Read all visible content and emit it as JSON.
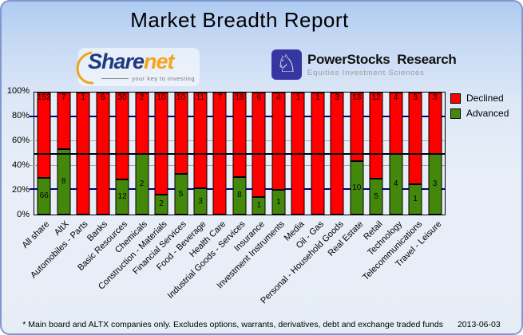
{
  "title": "Market Breadth Report",
  "logos": {
    "sharenet": {
      "part1": "Share",
      "part2": "net",
      "tagline": "your key to investing"
    },
    "powerstocks": {
      "name": "PowerStocks  Research",
      "tagline": "Equities Investment Sciences"
    }
  },
  "chart_data": {
    "type": "bar",
    "stacked": true,
    "normalized": "percent-stacked",
    "categories": [
      "All share",
      "AltX",
      "Automobiles - Parts",
      "Banks",
      "Basic Resources",
      "Chemicals",
      "Construction - Materials",
      "Financial Services",
      "Food - Beverage",
      "Health Care",
      "Industrial Goods - Services",
      "Insurance",
      "Investment Instruments",
      "Media",
      "Oil - Gas",
      "Personal - Household Goods",
      "Real Estate",
      "Retail",
      "Technology",
      "Telecommunications",
      "Travel - Leisure"
    ],
    "series": [
      {
        "name": "Declined",
        "color": "#ff0000",
        "values": [
          152,
          7,
          1,
          6,
          30,
          2,
          10,
          10,
          11,
          7,
          18,
          6,
          4,
          1,
          1,
          3,
          13,
          12,
          4,
          3,
          3
        ]
      },
      {
        "name": "Advanced",
        "color": "#44880b",
        "values": [
          66,
          8,
          0,
          0,
          12,
          2,
          2,
          5,
          3,
          0,
          8,
          1,
          1,
          0,
          0,
          0,
          10,
          5,
          4,
          1,
          3
        ]
      }
    ],
    "value_axis": {
      "min": 0,
      "max": 100,
      "unit": "%",
      "ticks": [
        "0%",
        "20%",
        "40%",
        "60%",
        "80%",
        "100%"
      ]
    },
    "gridlines": [
      {
        "at": 20,
        "color": "#00008b",
        "weight": 2
      },
      {
        "at": 40,
        "color": "#aaaaaa",
        "weight": 1
      },
      {
        "at": 60,
        "color": "#aaaaaa",
        "weight": 1
      },
      {
        "at": 80,
        "color": "#00008b",
        "weight": 2
      }
    ],
    "reference_line": {
      "at": 50,
      "color": "#000000"
    },
    "legend_position": "top-right"
  },
  "footer": {
    "note": "* Main board and ALTX companies only. Excludes options, warrants, derivatives, debt and exchange traded funds",
    "date": "2013-06-03"
  }
}
